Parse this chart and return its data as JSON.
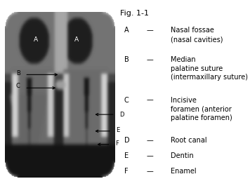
{
  "fig_label": "Fig. 1-1",
  "background_color": "#f0f0f0",
  "legend_entries": [
    {
      "letter": "A",
      "dash": "—",
      "text": "Nasal fossae\n(nasal cavities)"
    },
    {
      "letter": "B",
      "dash": "—",
      "text": "Median\npalatine suture\n(intermaxillary suture)"
    },
    {
      "letter": "C",
      "dash": "—",
      "text": "Incisive\nforamen (anterior\npalatine foramen)"
    },
    {
      "letter": "D",
      "dash": "—",
      "text": "Root canal"
    },
    {
      "letter": "E",
      "dash": "—",
      "text": "Dentin"
    },
    {
      "letter": "F",
      "dash": "—",
      "text": "Enamel"
    }
  ],
  "label_fontsize": 7.0,
  "fig_label_fontsize": 8.0,
  "font_family": "DejaVu Sans"
}
